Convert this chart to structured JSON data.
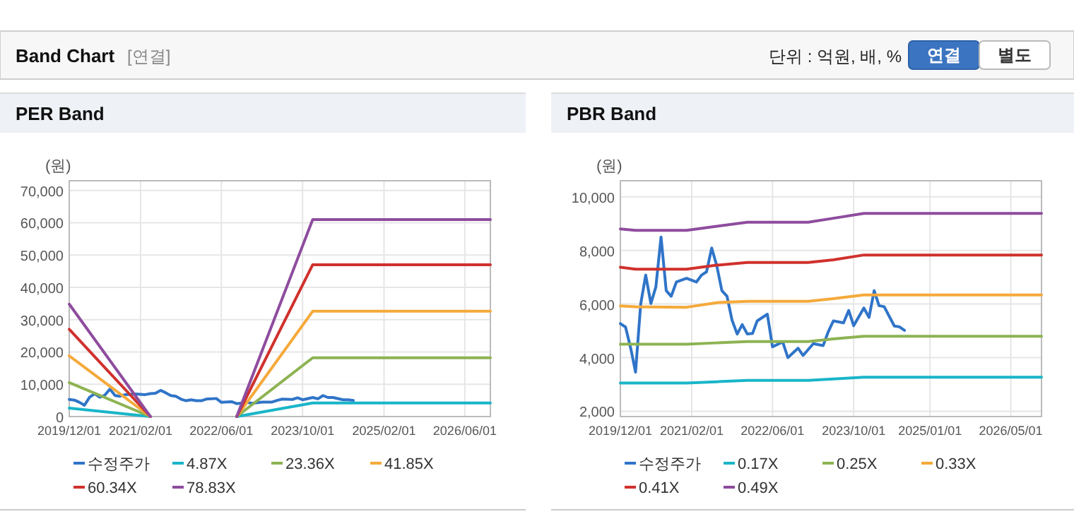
{
  "chart_data": [
    {
      "type": "other",
      "title": "Band Chart",
      "annotations": [
        "[연결]",
        "단위 : 억원, 배, %",
        "연결",
        "별도"
      ]
    },
    {
      "type": "line",
      "title": "PER Band",
      "ylabel": "(원)",
      "xlim": [
        "2019-12-01",
        "2026-11-01"
      ],
      "ylim": [
        0,
        73000
      ],
      "xticks": [
        {
          "value": "2019-12-01",
          "label": "2019/12/01"
        },
        {
          "value": "2021-02-01",
          "label": "2021/02/01"
        },
        {
          "value": "2022-06-01",
          "label": "2022/06/01"
        },
        {
          "value": "2023-10-01",
          "label": "2023/10/01"
        },
        {
          "value": "2025-02-01",
          "label": "2025/02/01"
        },
        {
          "value": "2026-06-01",
          "label": "2026/06/01"
        }
      ],
      "yticks": [
        0,
        {
          "value": 10000,
          "label": "10,000"
        },
        {
          "value": 20000,
          "label": "20,000"
        },
        {
          "value": 30000,
          "label": "30,000"
        },
        {
          "value": 40000,
          "label": "40,000"
        },
        {
          "value": 50000,
          "label": "50,000"
        },
        {
          "value": 60000,
          "label": "60,000"
        },
        {
          "value": 70000,
          "label": "70,000"
        }
      ],
      "grid": true,
      "legend": "bottom",
      "marker": "none",
      "line_style": "solid",
      "series": [
        {
          "name": "수정주가",
          "color": "#2f74c8",
          "x": [
            "2019-12",
            "2020-01",
            "2020-02",
            "2020-03",
            "2020-04",
            "2020-05",
            "2020-06",
            "2020-07",
            "2020-08",
            "2020-09",
            "2020-10",
            "2020-11",
            "2021-01",
            "2021-03",
            "2021-04",
            "2021-05",
            "2021-06",
            "2021-07",
            "2021-08",
            "2021-09",
            "2021-10",
            "2021-11",
            "2021-12",
            "2022-01",
            "2022-02",
            "2022-03",
            "2022-05",
            "2022-06",
            "2022-08",
            "2022-09",
            "2022-11",
            "2022-12",
            "2023-02",
            "2023-04",
            "2023-05",
            "2023-06",
            "2023-08",
            "2023-09",
            "2023-10",
            "2023-12",
            "2024-01",
            "2024-02",
            "2024-03",
            "2024-04",
            "2024-06",
            "2024-07",
            "2024-08"
          ],
          "values": [
            5300,
            5100,
            4400,
            3500,
            6000,
            7100,
            6000,
            6600,
            8500,
            6500,
            6300,
            6800,
            7000,
            6800,
            7100,
            7200,
            8100,
            7400,
            6500,
            6300,
            5400,
            4900,
            5200,
            4900,
            4900,
            5400,
            5600,
            4400,
            4600,
            4000,
            4400,
            4100,
            4500,
            4500,
            5000,
            5400,
            5300,
            5800,
            5200,
            5900,
            5500,
            6500,
            5900,
            5900,
            5200,
            5200,
            5000
          ]
        },
        {
          "name": "4.87X",
          "color": "#19b5c8",
          "x": [
            "2019-12",
            "2021-04",
            "2022-01",
            "2022-09",
            "2023-12",
            "2026-11"
          ],
          "values": [
            2600,
            0,
            null,
            0,
            4200,
            4200
          ]
        },
        {
          "name": "23.36X",
          "color": "#8db352",
          "x": [
            "2019-12",
            "2021-04",
            "2022-01",
            "2022-09",
            "2023-12",
            "2026-11"
          ],
          "values": [
            10500,
            0,
            null,
            0,
            18200,
            18200
          ]
        },
        {
          "name": "41.85X",
          "color": "#f5a93a",
          "x": [
            "2019-12",
            "2021-04",
            "2022-01",
            "2022-09",
            "2023-12",
            "2026-11"
          ],
          "values": [
            18800,
            0,
            null,
            0,
            32600,
            32600
          ]
        },
        {
          "name": "60.34X",
          "color": "#d0312d",
          "x": [
            "2019-12",
            "2021-04",
            "2022-01",
            "2022-09",
            "2023-12",
            "2026-11"
          ],
          "values": [
            27000,
            0,
            null,
            0,
            47000,
            47000
          ]
        },
        {
          "name": "78.83X",
          "color": "#8e4c9e",
          "x": [
            "2019-12",
            "2021-04",
            "2022-01",
            "2022-09",
            "2023-12",
            "2026-11"
          ],
          "values": [
            34800,
            0,
            null,
            0,
            61000,
            61000
          ]
        }
      ]
    },
    {
      "type": "line",
      "title": "PBR Band",
      "ylabel": "(원)",
      "xlim": [
        "2019-12-01",
        "2026-11-01"
      ],
      "ylim": [
        1800,
        10600
      ],
      "xticks": [
        {
          "value": "2019-12-01",
          "label": "2019/12/01"
        },
        {
          "value": "2021-02-01",
          "label": "2021/02/01"
        },
        {
          "value": "2022-06-01",
          "label": "2022/06/01"
        },
        {
          "value": "2023-10-01",
          "label": "2023/10/01"
        },
        {
          "value": "2025-01-01",
          "label": "2025/01/01"
        },
        {
          "value": "2026-05-01",
          "label": "2026/05/01"
        }
      ],
      "yticks": [
        {
          "value": 2000,
          "label": "2,000"
        },
        {
          "value": 4000,
          "label": "4,000"
        },
        {
          "value": 6000,
          "label": "6,000"
        },
        {
          "value": 8000,
          "label": "8,000"
        },
        {
          "value": 10000,
          "label": "10,000"
        }
      ],
      "grid": true,
      "legend": "bottom",
      "marker": "none",
      "line_style": "solid",
      "series": [
        {
          "name": "수정주가",
          "color": "#2f74c8",
          "x": [
            "2019-12",
            "2020-01",
            "2020-02",
            "2020-03",
            "2020-04",
            "2020-05",
            "2020-06",
            "2020-07",
            "2020-08",
            "2020-09",
            "2020-10",
            "2020-11",
            "2021-01",
            "2021-03",
            "2021-04",
            "2021-05",
            "2021-06",
            "2021-07",
            "2021-08",
            "2021-09",
            "2021-10",
            "2021-11",
            "2021-12",
            "2022-01",
            "2022-02",
            "2022-03",
            "2022-05",
            "2022-06",
            "2022-08",
            "2022-09",
            "2022-11",
            "2022-12",
            "2023-02",
            "2023-04",
            "2023-05",
            "2023-06",
            "2023-08",
            "2023-09",
            "2023-10",
            "2023-12",
            "2024-01",
            "2024-02",
            "2024-03",
            "2024-04",
            "2024-06",
            "2024-07",
            "2024-08"
          ],
          "values": [
            5270,
            5140,
            4350,
            3460,
            6000,
            7080,
            6020,
            6640,
            8500,
            6500,
            6290,
            6820,
            6960,
            6820,
            7080,
            7200,
            8090,
            7440,
            6500,
            6290,
            5400,
            4880,
            5230,
            4880,
            4900,
            5370,
            5620,
            4400,
            4590,
            4000,
            4350,
            4080,
            4520,
            4450,
            4960,
            5370,
            5300,
            5760,
            5190,
            5850,
            5500,
            6500,
            5940,
            5900,
            5180,
            5150,
            5020
          ]
        },
        {
          "name": "0.17X",
          "color": "#19b5c8",
          "x": [
            "2019-12",
            "2020-03",
            "2021-01",
            "2021-07",
            "2022-01",
            "2023-01",
            "2023-06",
            "2023-12",
            "2026-11"
          ],
          "values": [
            3050,
            3050,
            3050,
            3100,
            3150,
            3150,
            3200,
            3270,
            3270
          ]
        },
        {
          "name": "0.25X",
          "color": "#8db352",
          "x": [
            "2019-12",
            "2020-03",
            "2021-01",
            "2021-07",
            "2022-01",
            "2023-01",
            "2023-06",
            "2023-12",
            "2026-11"
          ],
          "values": [
            4500,
            4500,
            4500,
            4550,
            4600,
            4600,
            4700,
            4800,
            4800
          ]
        },
        {
          "name": "0.33X",
          "color": "#f5a93a",
          "x": [
            "2019-12",
            "2020-03",
            "2021-01",
            "2021-07",
            "2022-01",
            "2023-01",
            "2023-06",
            "2023-12",
            "2026-11"
          ],
          "values": [
            5930,
            5900,
            5880,
            6050,
            6100,
            6100,
            6200,
            6340,
            6340
          ]
        },
        {
          "name": "0.41X",
          "color": "#d0312d",
          "x": [
            "2019-12",
            "2020-03",
            "2021-01",
            "2021-07",
            "2022-01",
            "2023-01",
            "2023-06",
            "2023-12",
            "2026-11"
          ],
          "values": [
            7370,
            7300,
            7300,
            7450,
            7550,
            7550,
            7650,
            7830,
            7830
          ]
        },
        {
          "name": "0.49X",
          "color": "#8e4c9e",
          "x": [
            "2019-12",
            "2020-03",
            "2021-01",
            "2021-07",
            "2022-01",
            "2023-01",
            "2023-06",
            "2023-12",
            "2026-11"
          ],
          "values": [
            8800,
            8750,
            8750,
            8900,
            9050,
            9050,
            9200,
            9380,
            9380
          ]
        }
      ]
    }
  ]
}
